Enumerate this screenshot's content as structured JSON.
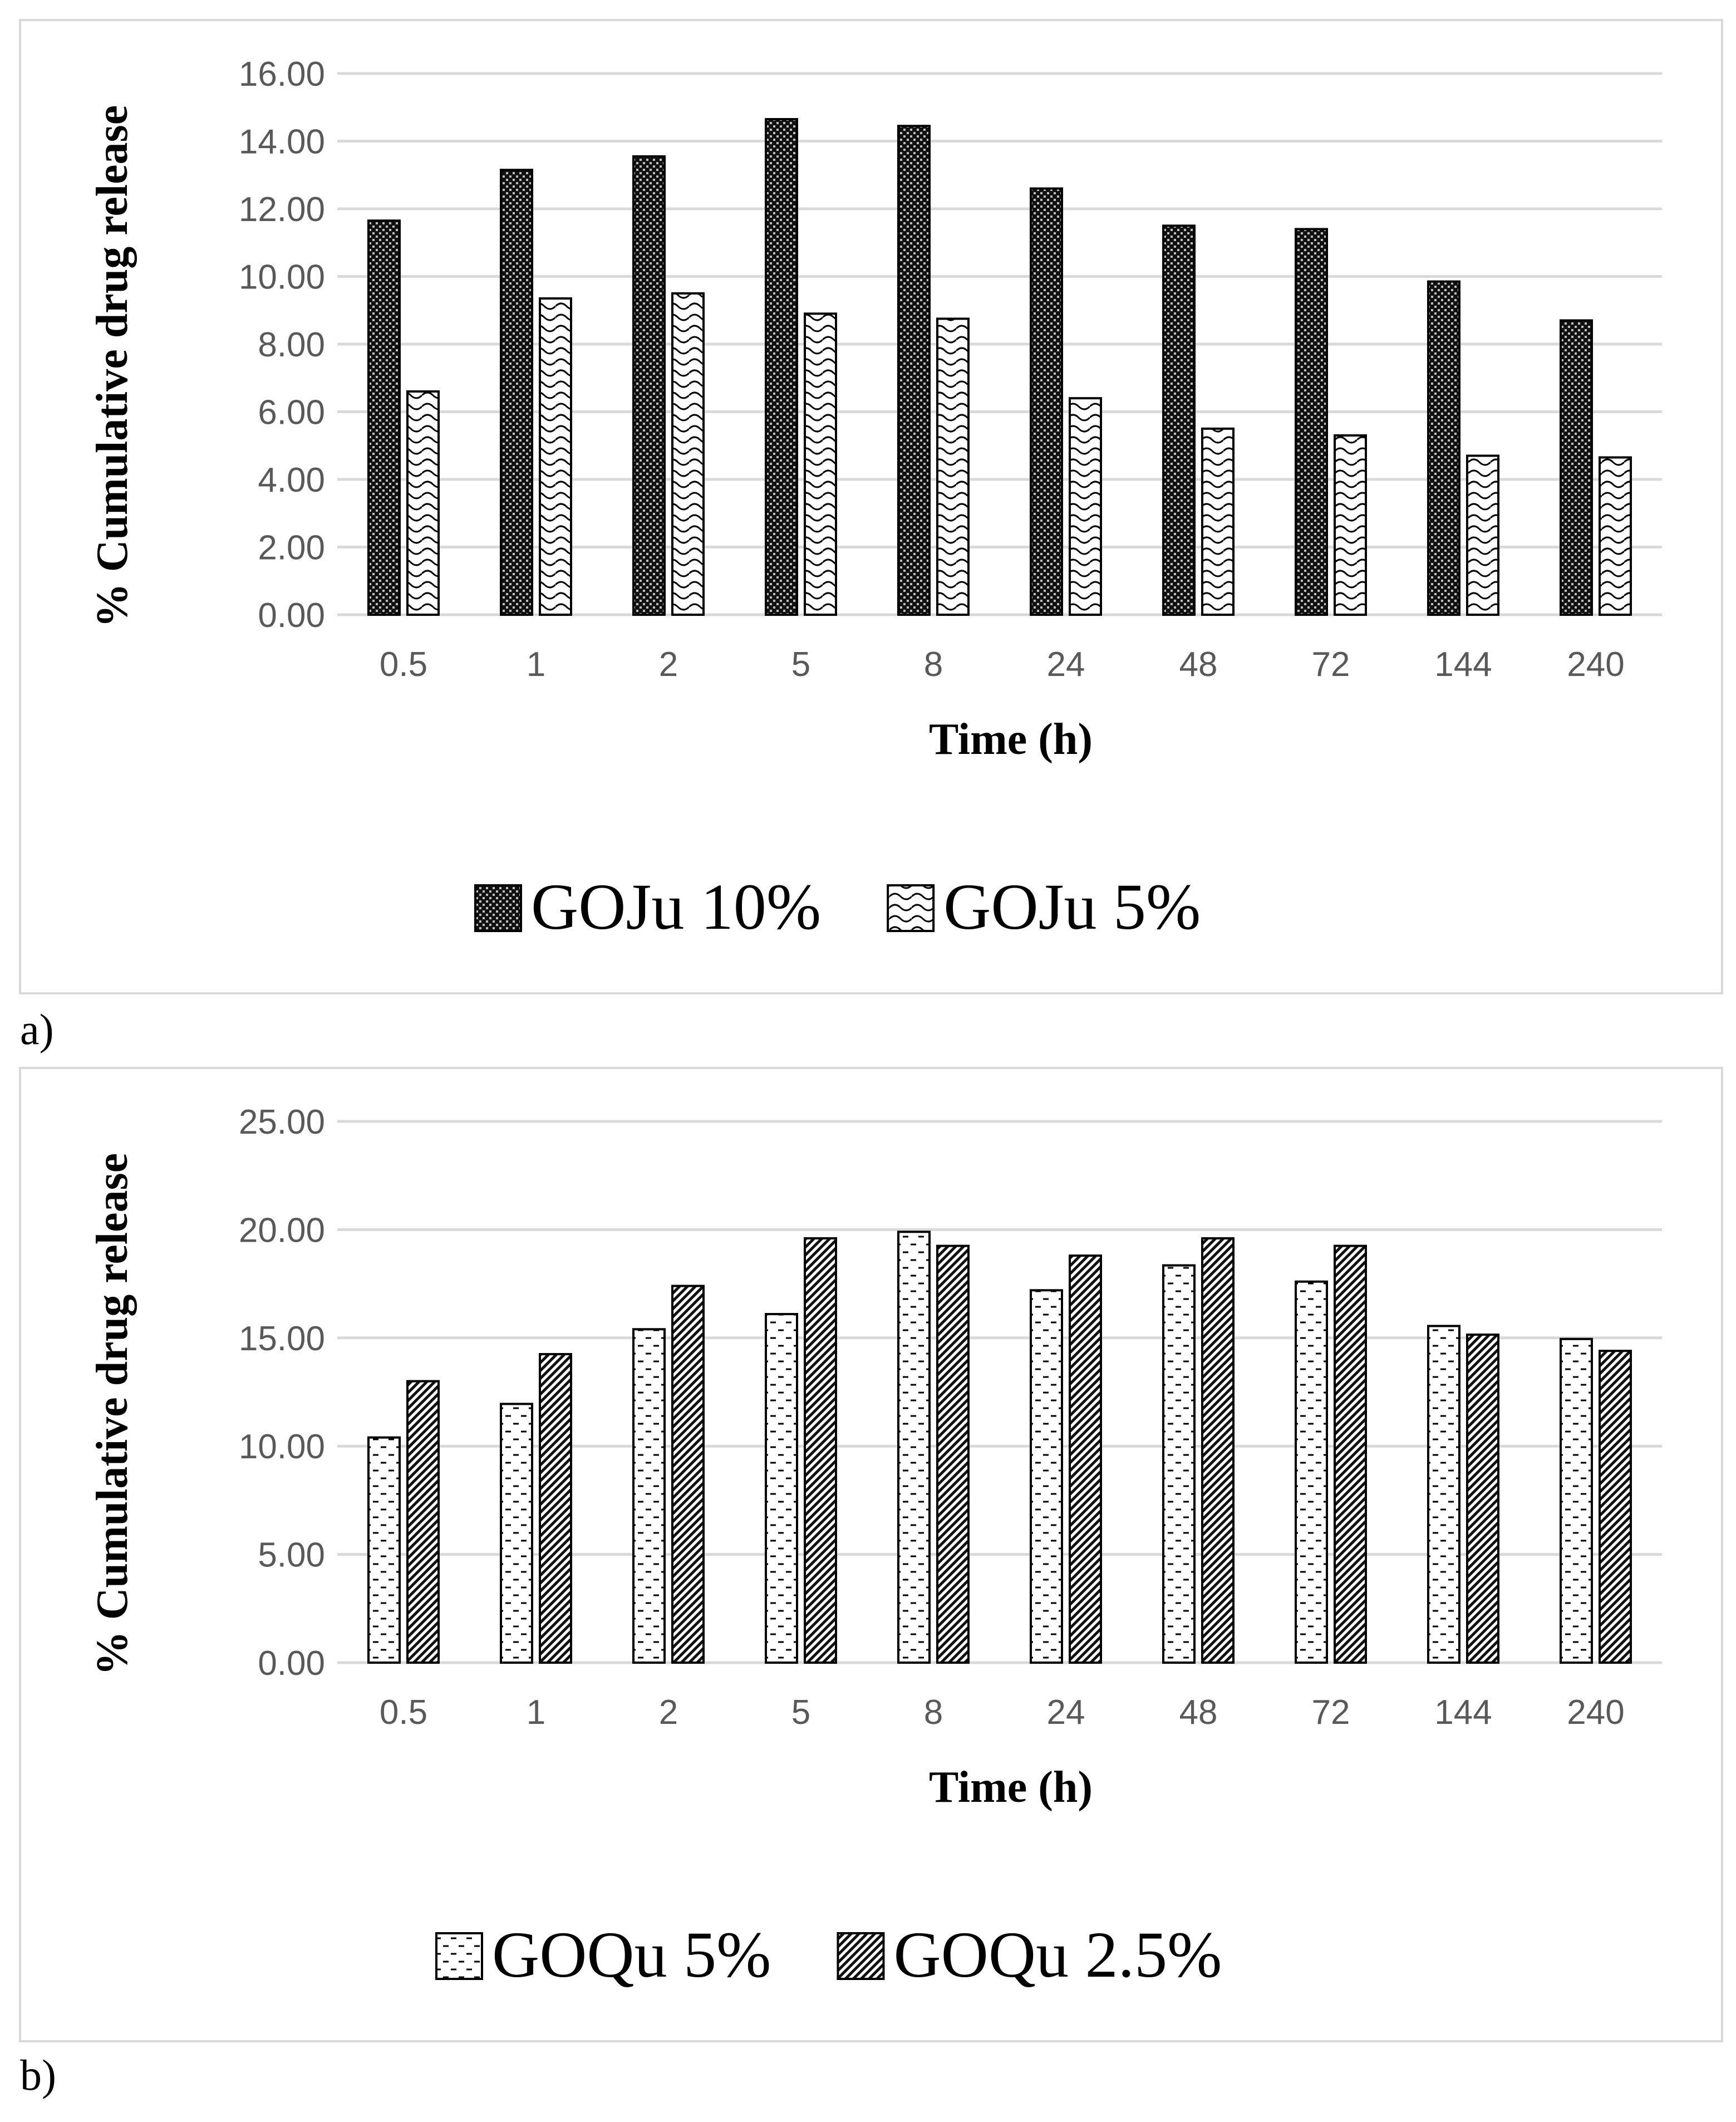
{
  "panels": {
    "a": {
      "label": "a)"
    },
    "b": {
      "label": "b)"
    }
  },
  "chart_data": [
    {
      "type": "bar",
      "panel": "a",
      "title": "",
      "categories": [
        "0.5",
        "1",
        "2",
        "5",
        "8",
        "24",
        "48",
        "72",
        "144",
        "240"
      ],
      "series": [
        {
          "name": "GOJu 10%",
          "pattern": "checker-dark",
          "values": [
            11.65,
            13.15,
            13.55,
            14.65,
            14.45,
            12.6,
            11.5,
            11.4,
            9.85,
            8.7
          ]
        },
        {
          "name": "GOJu 5%",
          "pattern": "wave",
          "values": [
            6.6,
            9.35,
            9.5,
            8.9,
            8.75,
            6.4,
            5.5,
            5.3,
            4.7,
            4.65
          ]
        }
      ],
      "xlabel": "Time (h)",
      "ylabel": "% Cumulative drug release",
      "ylim": [
        0,
        16
      ],
      "yticks": [
        "0.00",
        "2.00",
        "4.00",
        "6.00",
        "8.00",
        "10.00",
        "12.00",
        "14.00",
        "16.00"
      ],
      "grid": true,
      "legend_position": "bottom"
    },
    {
      "type": "bar",
      "panel": "b",
      "title": "",
      "categories": [
        "0.5",
        "1",
        "2",
        "5",
        "8",
        "24",
        "48",
        "72",
        "144",
        "240"
      ],
      "series": [
        {
          "name": "GOQu 5%",
          "pattern": "dash-brick",
          "values": [
            10.4,
            11.95,
            15.4,
            16.1,
            19.9,
            17.2,
            18.35,
            17.6,
            15.55,
            14.95
          ]
        },
        {
          "name": "GOQu 2.5%",
          "pattern": "diagonal-hatch",
          "values": [
            13.0,
            14.25,
            17.4,
            19.6,
            19.25,
            18.8,
            19.6,
            19.25,
            15.15,
            14.4
          ]
        }
      ],
      "xlabel": "Time (h)",
      "ylabel": "% Cumulative drug release",
      "ylim": [
        0,
        25
      ],
      "yticks": [
        "0.00",
        "5.00",
        "10.00",
        "15.00",
        "20.00",
        "25.00"
      ],
      "grid": true,
      "legend_position": "bottom"
    }
  ]
}
